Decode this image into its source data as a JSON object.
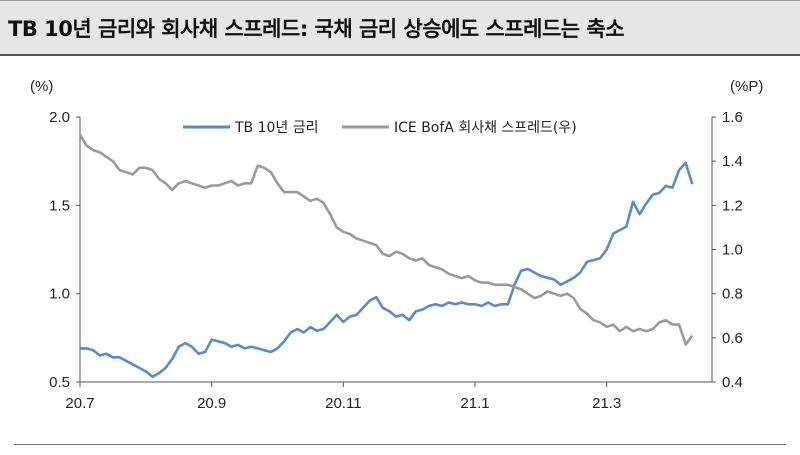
{
  "header": {
    "title": "TB 10년 금리와 회사채 스프레드: 국채 금리 상승에도 스프레드는 축소"
  },
  "chart_data": {
    "type": "line",
    "title": "TB 10년 금리와 회사채 스프레드: 국채 금리 상승에도 스프레드는 축소",
    "left_unit": "(%)",
    "right_unit": "(%P)",
    "x_ticks": [
      "20.7",
      "20.9",
      "20.11",
      "21.1",
      "21.3"
    ],
    "x_range": [
      0,
      9.6
    ],
    "y_left_range": [
      0.5,
      2.0
    ],
    "y_left_ticks": [
      "0.5",
      "1.0",
      "1.5",
      "2.0"
    ],
    "y_right_range": [
      0.4,
      1.6
    ],
    "y_right_ticks": [
      "0.4",
      "0.6",
      "0.8",
      "1.0",
      "1.2",
      "1.4",
      "1.6"
    ],
    "legend_placement": "top-center",
    "grid": false,
    "series": [
      {
        "name": "TB 10년 금리",
        "axis": "left",
        "color": "#5b8ac8",
        "x": [
          0,
          0.1,
          0.2,
          0.3,
          0.4,
          0.5,
          0.6,
          0.7,
          0.8,
          0.9,
          1.0,
          1.1,
          1.2,
          1.3,
          1.4,
          1.5,
          1.6,
          1.7,
          1.8,
          1.9,
          2.0,
          2.1,
          2.2,
          2.3,
          2.4,
          2.5,
          2.6,
          2.7,
          2.8,
          2.9,
          3.0,
          3.1,
          3.2,
          3.3,
          3.4,
          3.5,
          3.6,
          3.7,
          3.8,
          3.9,
          4.0,
          4.1,
          4.2,
          4.3,
          4.4,
          4.5,
          4.6,
          4.7,
          4.8,
          4.9,
          5.0,
          5.1,
          5.2,
          5.3,
          5.4,
          5.5,
          5.6,
          5.7,
          5.8,
          5.9,
          6.0,
          6.1,
          6.2,
          6.3,
          6.4,
          6.5,
          6.6,
          6.7,
          6.8,
          6.9,
          7.0,
          7.1,
          7.2,
          7.3,
          7.4,
          7.5,
          7.6,
          7.7,
          7.8,
          7.9,
          8.0,
          8.1,
          8.2,
          8.3,
          8.4,
          8.5,
          8.6,
          8.7,
          8.8,
          8.9,
          9.0,
          9.1,
          9.2,
          9.3
        ],
        "values": [
          0.69,
          0.69,
          0.68,
          0.65,
          0.66,
          0.64,
          0.64,
          0.62,
          0.6,
          0.58,
          0.56,
          0.53,
          0.55,
          0.58,
          0.63,
          0.7,
          0.72,
          0.7,
          0.66,
          0.67,
          0.74,
          0.73,
          0.72,
          0.7,
          0.71,
          0.69,
          0.7,
          0.69,
          0.68,
          0.67,
          0.69,
          0.73,
          0.78,
          0.8,
          0.78,
          0.81,
          0.79,
          0.8,
          0.84,
          0.88,
          0.84,
          0.87,
          0.88,
          0.92,
          0.96,
          0.98,
          0.92,
          0.9,
          0.87,
          0.88,
          0.85,
          0.9,
          0.91,
          0.93,
          0.94,
          0.93,
          0.95,
          0.94,
          0.95,
          0.94,
          0.94,
          0.93,
          0.95,
          0.93,
          0.94,
          0.94,
          1.05,
          1.13,
          1.14,
          1.12,
          1.1,
          1.09,
          1.08,
          1.05,
          1.07,
          1.09,
          1.12,
          1.18,
          1.19,
          1.2,
          1.25,
          1.34,
          1.36,
          1.38,
          1.52,
          1.45,
          1.51,
          1.56,
          1.57,
          1.61,
          1.6,
          1.7,
          1.74,
          1.62
        ]
      },
      {
        "name": "ICE BofA 회사채 스프레드(우)",
        "axis": "right",
        "color": "#9a9a9a",
        "x": [
          0,
          0.1,
          0.2,
          0.3,
          0.4,
          0.5,
          0.6,
          0.7,
          0.8,
          0.9,
          1.0,
          1.1,
          1.2,
          1.3,
          1.4,
          1.5,
          1.6,
          1.7,
          1.8,
          1.9,
          2.0,
          2.1,
          2.2,
          2.3,
          2.4,
          2.5,
          2.6,
          2.7,
          2.8,
          2.9,
          3.0,
          3.1,
          3.2,
          3.3,
          3.4,
          3.5,
          3.6,
          3.7,
          3.8,
          3.9,
          4.0,
          4.1,
          4.2,
          4.3,
          4.4,
          4.5,
          4.6,
          4.7,
          4.8,
          4.9,
          5.0,
          5.1,
          5.2,
          5.3,
          5.4,
          5.5,
          5.6,
          5.7,
          5.8,
          5.9,
          6.0,
          6.1,
          6.2,
          6.3,
          6.4,
          6.5,
          6.6,
          6.7,
          6.8,
          6.9,
          7.0,
          7.1,
          7.2,
          7.3,
          7.4,
          7.5,
          7.6,
          7.7,
          7.8,
          7.9,
          8.0,
          8.1,
          8.2,
          8.3,
          8.4,
          8.5,
          8.6,
          8.7,
          8.8,
          8.9,
          9.0,
          9.1,
          9.2,
          9.3
        ],
        "values": [
          1.52,
          1.47,
          1.45,
          1.44,
          1.42,
          1.4,
          1.36,
          1.35,
          1.34,
          1.37,
          1.37,
          1.36,
          1.32,
          1.3,
          1.27,
          1.3,
          1.31,
          1.3,
          1.29,
          1.28,
          1.29,
          1.29,
          1.3,
          1.31,
          1.29,
          1.3,
          1.3,
          1.38,
          1.37,
          1.35,
          1.3,
          1.26,
          1.26,
          1.26,
          1.24,
          1.22,
          1.23,
          1.21,
          1.16,
          1.1,
          1.08,
          1.07,
          1.05,
          1.04,
          1.03,
          1.02,
          0.98,
          0.97,
          0.99,
          0.98,
          0.96,
          0.95,
          0.96,
          0.93,
          0.92,
          0.91,
          0.89,
          0.88,
          0.87,
          0.88,
          0.86,
          0.85,
          0.85,
          0.84,
          0.84,
          0.84,
          0.83,
          0.82,
          0.8,
          0.78,
          0.79,
          0.81,
          0.8,
          0.79,
          0.8,
          0.78,
          0.73,
          0.71,
          0.68,
          0.67,
          0.65,
          0.66,
          0.63,
          0.65,
          0.63,
          0.64,
          0.63,
          0.64,
          0.67,
          0.68,
          0.66,
          0.66,
          0.57,
          0.61
        ]
      }
    ]
  }
}
